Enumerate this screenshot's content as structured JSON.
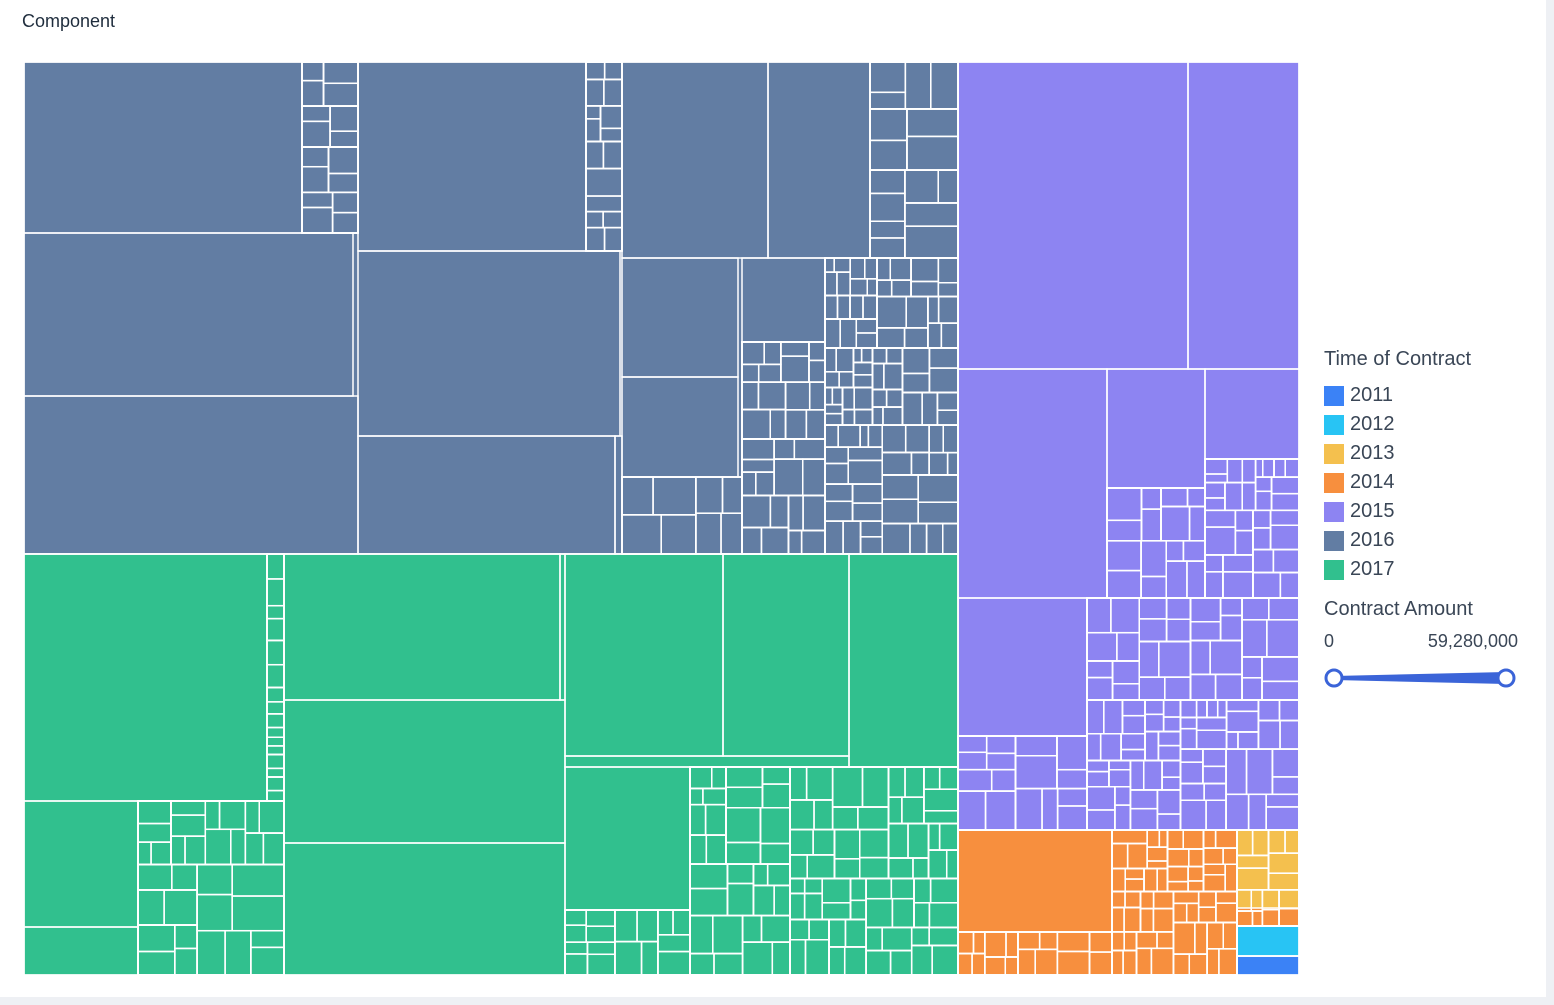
{
  "panel": {
    "title": "Component"
  },
  "chart_data": {
    "type": "treemap",
    "title": "",
    "color_by": "Time of Contract",
    "size_by": "Contract Amount",
    "size_range": [
      "0",
      "59,280,000"
    ],
    "legend": {
      "title": "Time of Contract",
      "placement": "right",
      "items": [
        {
          "label": "2011",
          "color": "#3b82f6"
        },
        {
          "label": "2012",
          "color": "#28c4f4"
        },
        {
          "label": "2013",
          "color": "#f4c04e"
        },
        {
          "label": "2014",
          "color": "#f78f3e"
        },
        {
          "label": "2015",
          "color": "#8d84f2"
        },
        {
          "label": "2016",
          "color": "#627da3"
        },
        {
          "label": "2017",
          "color": "#31c08e"
        }
      ]
    },
    "groups": [
      {
        "year": "2016",
        "share": 0.39
      },
      {
        "year": "2017",
        "share": 0.35
      },
      {
        "year": "2015",
        "share": 0.19
      },
      {
        "year": "2014",
        "share": 0.05
      },
      {
        "year": "2013",
        "share": 0.012
      },
      {
        "year": "2012",
        "share": 0.005
      },
      {
        "year": "2011",
        "share": 0.003
      }
    ]
  }
}
